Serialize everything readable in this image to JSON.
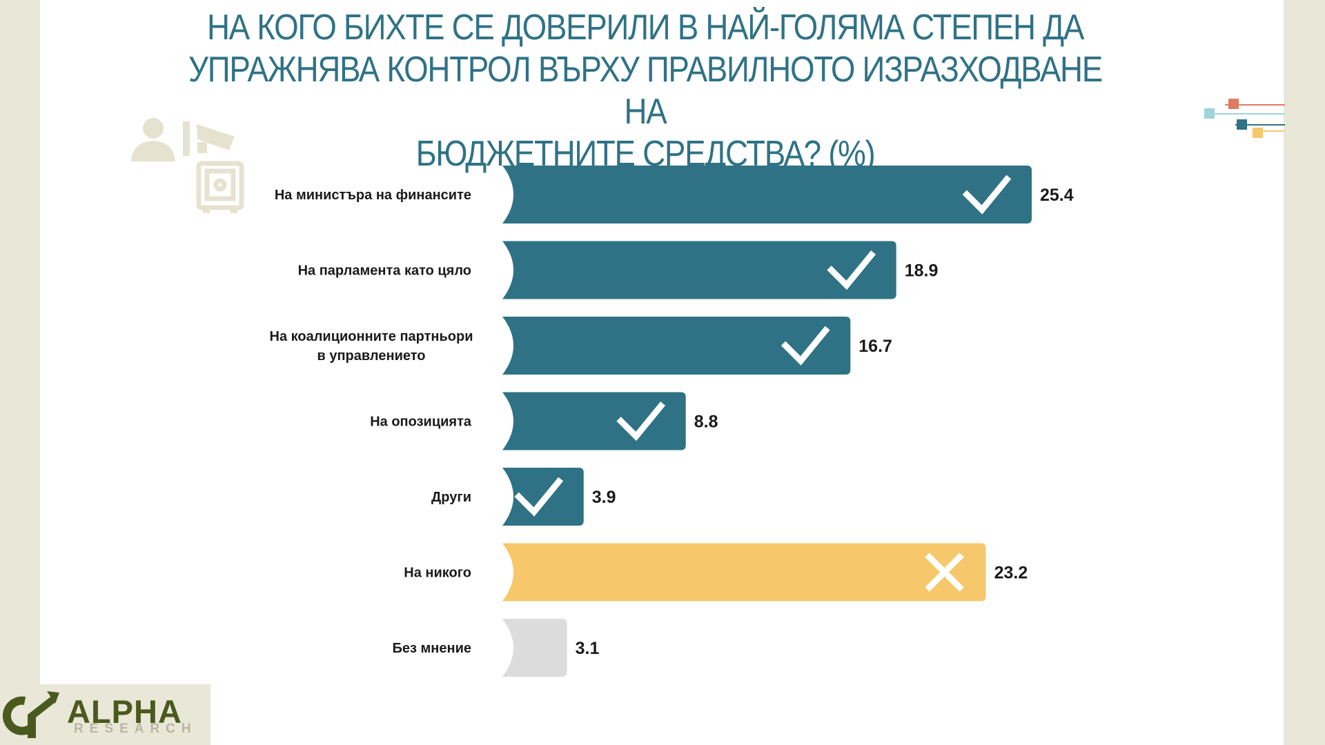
{
  "title_lines": [
    "НА КОГО БИХТЕ СЕ ДОВЕРИЛИ В НАЙ-ГОЛЯМА СТЕПЕН ДА",
    "УПРАЖНЯВА КОНТРОЛ ВЪРХУ ПРАВИЛНОТО ИЗРАЗХОДВАНЕ НА",
    "БЮДЖЕТНИТЕ СРЕДСТВА?  (%)"
  ],
  "logo": {
    "name": "ALPHA",
    "sub": "RESEARCH"
  },
  "colors": {
    "title": "#2f7285",
    "bar_main": "#2f7285",
    "bar_none": "#f6c86b",
    "bar_noopinion": "#dcdcdc",
    "background": "#e9e7d8"
  },
  "chart_data": {
    "type": "bar",
    "orientation": "horizontal",
    "title": "НА КОГО БИХТЕ СЕ ДОВЕРИЛИ В НАЙ-ГОЛЯМА СТЕПЕН ДА УПРАЖНЯВА КОНТРОЛ ВЪРХУ ПРАВИЛНОТО ИЗРАЗХОДВАНЕ НА БЮДЖЕТНИТЕ СРЕДСТВА?  (%)",
    "categories": [
      [
        "На министъра на финансите"
      ],
      [
        "На парламента като цяло"
      ],
      [
        "На коалиционните партньори",
        "в управлението"
      ],
      [
        "На опозицията"
      ],
      [
        "Други"
      ],
      [
        "На никого"
      ],
      [
        "Без мнение"
      ]
    ],
    "values": [
      25.4,
      18.9,
      16.7,
      8.8,
      3.9,
      23.2,
      3.1
    ],
    "value_labels": [
      "25.4",
      "18.9",
      "16.7",
      "8.8",
      "3.9",
      "23.2",
      "3.1"
    ],
    "markers": [
      "check",
      "check",
      "check",
      "check",
      "check",
      "cross",
      "none"
    ],
    "bar_colors": [
      "#2f7285",
      "#2f7285",
      "#2f7285",
      "#2f7285",
      "#2f7285",
      "#f6c86b",
      "#dcdcdc"
    ],
    "xlim": [
      0,
      25.4
    ],
    "grid": false,
    "legend": "none"
  }
}
